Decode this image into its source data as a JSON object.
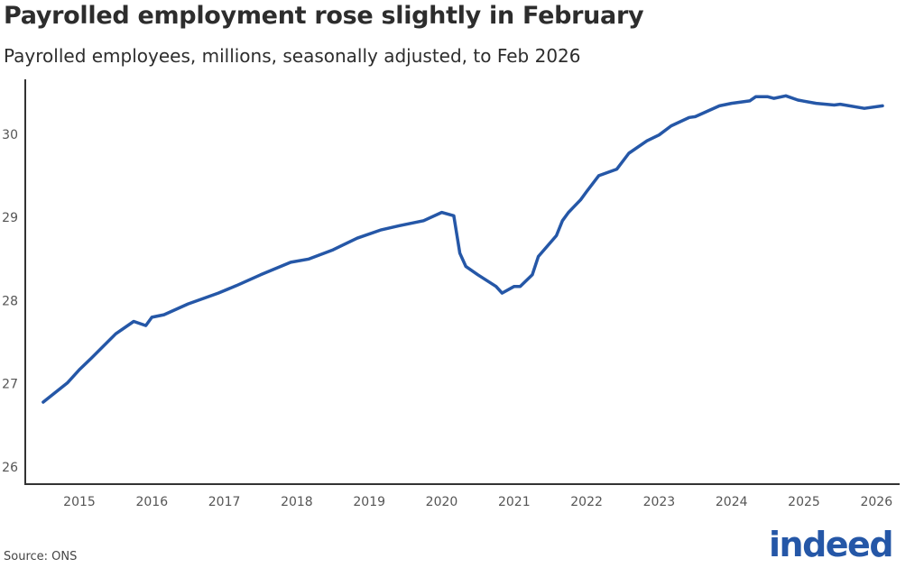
{
  "chart_data": {
    "type": "line",
    "title": "Payrolled employment rose slightly in February",
    "subtitle": "Payrolled employees, millions, seasonally adjusted, to Feb 2026",
    "xlabel": "",
    "ylabel": "",
    "ylim": [
      25.8,
      30.7
    ],
    "yticks": [
      26,
      27,
      28,
      29,
      30
    ],
    "xticks": [
      "2015",
      "2016",
      "2017",
      "2018",
      "2019",
      "2020",
      "2021",
      "2022",
      "2023",
      "2024",
      "2025",
      "2026"
    ],
    "xlim": [
      "2014-06",
      "2026-05"
    ],
    "grid": false,
    "legend": "none",
    "line_color": "#2557a7",
    "series": [
      {
        "x": [
          "2014-07",
          "2014-11",
          "2015-01",
          "2015-03",
          "2015-07",
          "2015-10",
          "2015-12",
          "2016-01",
          "2016-03",
          "2016-07",
          "2016-12",
          "2017-03",
          "2017-07",
          "2017-12",
          "2018-03",
          "2018-07",
          "2018-11",
          "2019-03",
          "2019-06",
          "2019-10",
          "2020-01",
          "2020-03",
          "2020-04",
          "2020-05",
          "2020-07",
          "2020-10",
          "2020-11",
          "2021-01",
          "2021-02",
          "2021-04",
          "2021-05",
          "2021-08",
          "2021-09",
          "2021-10",
          "2021-12",
          "2022-01",
          "2022-03",
          "2022-06",
          "2022-08",
          "2022-11",
          "2023-01",
          "2023-03",
          "2023-06",
          "2023-07",
          "2023-11",
          "2024-01",
          "2024-04",
          "2024-05",
          "2024-07",
          "2024-08",
          "2024-10",
          "2024-12",
          "2025-03",
          "2025-06",
          "2025-07",
          "2025-11",
          "2026-02"
        ],
        "values": [
          26.78,
          27.01,
          27.17,
          27.31,
          27.6,
          27.75,
          27.7,
          27.8,
          27.83,
          27.96,
          28.09,
          28.18,
          28.31,
          28.46,
          28.5,
          28.61,
          28.75,
          28.85,
          28.9,
          28.96,
          29.06,
          29.02,
          28.57,
          28.41,
          28.31,
          28.17,
          28.09,
          28.17,
          28.17,
          28.31,
          28.53,
          28.78,
          28.96,
          29.06,
          29.21,
          29.31,
          29.5,
          29.58,
          29.77,
          29.92,
          29.99,
          30.1,
          30.2,
          30.21,
          30.34,
          30.37,
          30.4,
          30.45,
          30.45,
          30.43,
          30.46,
          30.41,
          30.37,
          30.35,
          30.36,
          30.31,
          30.34
        ]
      }
    ]
  },
  "footer": {
    "source": "Source: ONS",
    "logo": "indeed"
  }
}
